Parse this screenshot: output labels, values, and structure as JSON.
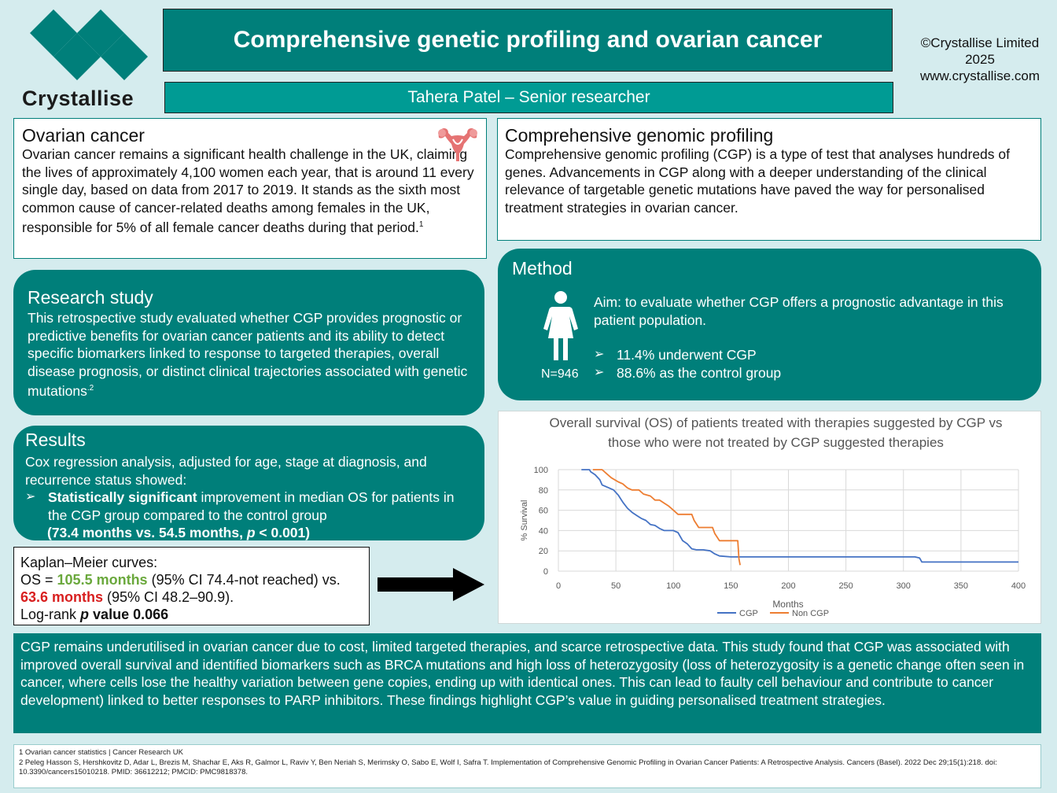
{
  "header": {
    "title": "Comprehensive genetic profiling and ovarian cancer",
    "author": "Tahera Patel – Senior researcher",
    "logo_text": "Crystallise",
    "copyright_line1": "©Crystallise Limited",
    "copyright_line2": "2025",
    "copyright_line3": "www.crystallise.com"
  },
  "ovarian": {
    "heading": "Ovarian cancer",
    "text": "Ovarian cancer remains a significant health challenge in the UK, claiming the lives of approximately 4,100 women each year, that is around 11 every single day, based on data from 2017 to 2019. It stands as the sixth most common cause of cancer-related deaths among females in the UK, responsible for 5% of all female cancer deaths during that period.",
    "ref": "1",
    "icon": "uterus-icon"
  },
  "cgp": {
    "heading": "Comprehensive genomic profiling",
    "text": "Comprehensive genomic profiling (CGP) is a type of test that analyses hundreds of genes. Advancements in CGP along with a deeper understanding of the clinical relevance of targetable genetic mutations have paved the way for personalised treatment strategies in ovarian cancer."
  },
  "research": {
    "heading": "Research study",
    "text": "This retrospective study evaluated whether CGP provides prognostic or predictive benefits for ovarian cancer patients and its ability to detect specific biomarkers linked to response to targeted therapies, overall disease prognosis, or distinct clinical trajectories associated with genetic mutations",
    "ref": "2"
  },
  "results": {
    "heading": "Results",
    "intro": "Cox regression analysis, adjusted for age, stage at diagnosis, and recurrence status showed:",
    "bullet_bold": "Statistically significant",
    "bullet_rest": " improvement in median OS for patients in the CGP group compared to the control group",
    "stats_open": "(73.4 months vs. 54.5 months, ",
    "stats_p": "p",
    "stats_close": " < 0.001)"
  },
  "method": {
    "heading": "Method",
    "aim": "Aim: to evaluate whether CGP offers a prognostic advantage in this patient population.",
    "bullets": [
      "11.4% underwent CGP",
      "88.6% as the control group"
    ],
    "n_label": "N=946",
    "icon": "woman-icon"
  },
  "km": {
    "line1": "Kaplan–Meier curves:",
    "os_prefix": "OS = ",
    "os_cgp": "105.5 months",
    "os_cgp_ci": " (95% CI 74.4-not reached) vs.",
    "os_non": "63.6 months",
    "os_non_ci": " (95% CI 48.2–90.9).",
    "logrank_prefix": "Log-rank ",
    "logrank_p": "p",
    "logrank_suffix": " value 0.066",
    "arrow_icon": "right-arrow-icon"
  },
  "chart_data": {
    "type": "line",
    "title": "Overall survival (OS) of patients treated with therapies suggested by CGP vs those who were not treated by CGP suggested therapies",
    "xlabel": "Months",
    "ylabel": "% Survival",
    "xlim": [
      0,
      400
    ],
    "ylim": [
      0,
      100
    ],
    "xticks": [
      0,
      50,
      100,
      150,
      200,
      250,
      300,
      350,
      400
    ],
    "yticks": [
      0,
      20,
      40,
      60,
      80,
      100
    ],
    "grid": true,
    "legend": "bottom",
    "series": [
      {
        "name": "CGP",
        "color": "#4472c4",
        "x": [
          20,
          27,
          28,
          32,
          36,
          38,
          44,
          48,
          52,
          56,
          60,
          64,
          68,
          72,
          76,
          80,
          84,
          88,
          92,
          96,
          100,
          104,
          108,
          112,
          116,
          120,
          126,
          132,
          136,
          140,
          150,
          200,
          250,
          290,
          300,
          310,
          314,
          316,
          320,
          350,
          400
        ],
        "y": [
          100,
          100,
          98,
          95,
          90,
          85,
          82,
          80,
          75,
          68,
          62,
          58,
          55,
          52,
          50,
          46,
          45,
          42,
          40,
          40,
          40,
          38,
          30,
          27,
          22,
          21,
          21,
          20,
          17,
          15,
          14,
          14,
          14,
          14,
          14,
          14,
          13,
          9,
          9,
          9,
          9
        ]
      },
      {
        "name": "Non CGP",
        "color": "#ed7d31",
        "x": [
          30,
          38,
          42,
          46,
          52,
          56,
          60,
          64,
          70,
          74,
          80,
          84,
          88,
          92,
          96,
          100,
          104,
          108,
          112,
          116,
          118,
          122,
          126,
          130,
          134,
          136,
          140,
          144,
          148,
          152,
          156,
          157,
          158
        ],
        "y": [
          100,
          100,
          96,
          92,
          88,
          86,
          82,
          80,
          80,
          76,
          74,
          70,
          70,
          67,
          64,
          60,
          56,
          56,
          56,
          56,
          50,
          43,
          43,
          43,
          43,
          37,
          30,
          30,
          30,
          30,
          30,
          12,
          6
        ]
      }
    ]
  },
  "conclusion": {
    "text": "CGP remains underutilised in ovarian cancer due to cost, limited targeted therapies, and scarce retrospective data. This study found that CGP was associated with improved overall survival and identified biomarkers such as BRCA mutations and high loss of heterozygosity (loss of heterozygosity is a genetic change often seen in cancer, where cells lose the healthy variation between gene copies, ending up with identical ones. This can lead to faulty cell behaviour and contribute to cancer development) linked to better responses to PARP inhibitors. These findings highlight CGP’s value in guiding personalised treatment strategies."
  },
  "references": {
    "ref1": "1 Ovarian cancer statistics | Cancer Research UK",
    "ref2": "2 Peleg Hasson S, Hershkovitz D, Adar L, Brezis M, Shachar E, Aks R, Galmor L, Raviv Y, Ben Neriah S, Merimsky O, Sabo E, Wolf I, Safra T. Implementation of Comprehensive Genomic Profiling in Ovarian Cancer Patients: A Retrospective Analysis. Cancers (Basel). 2022 Dec 29;15(1):218. doi: 10.3390/cancers15010218. PMID: 36612212; PMCID: PMC9818378."
  }
}
